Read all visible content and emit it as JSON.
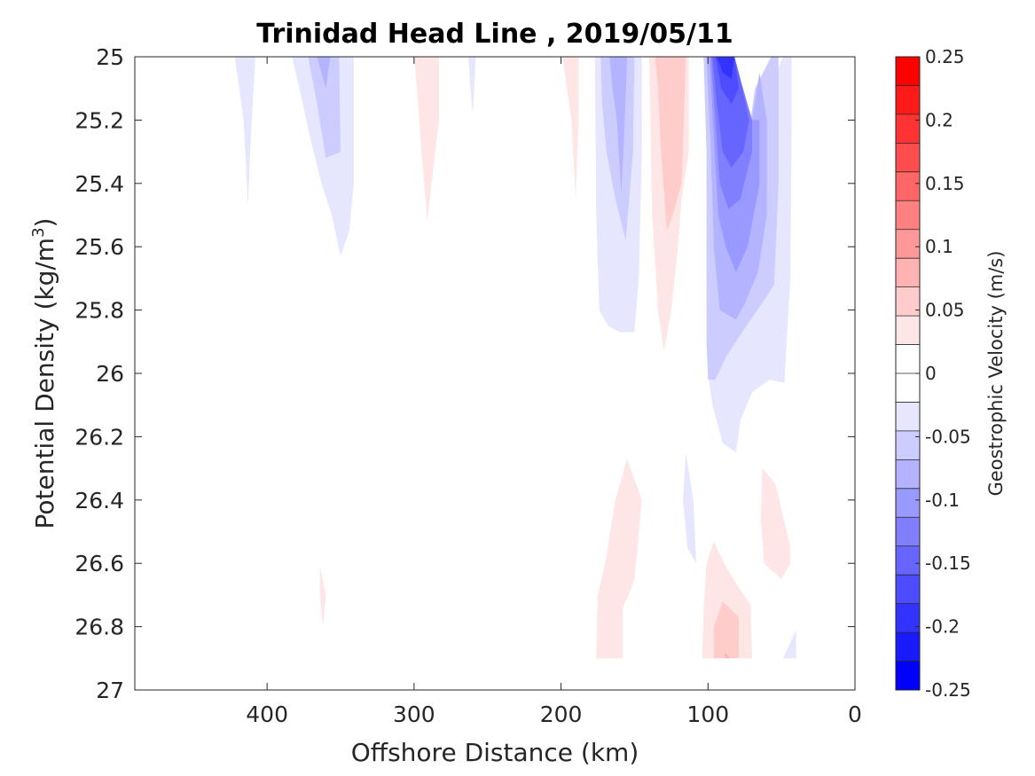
{
  "chart_data": {
    "type": "contour",
    "title": "Trinidad Head Line , 2019/05/11",
    "xlabel": "Offshore Distance (km)",
    "ylabel": "Potential Density (kg/m",
    "ylabel_superscript": "3",
    "ylabel_suffix": ")",
    "xlim": [
      490,
      0
    ],
    "x_reversed": true,
    "x_ticks": [
      400,
      300,
      200,
      100,
      0
    ],
    "x_tick_labels": [
      "400",
      "300",
      "200",
      "100",
      "0"
    ],
    "ylim": [
      25,
      27
    ],
    "y_reversed": true,
    "y_ticks": [
      25,
      25.2,
      25.4,
      25.6,
      25.8,
      26,
      26.2,
      26.4,
      26.6,
      26.8,
      27
    ],
    "y_tick_labels": [
      "25",
      "25.2",
      "25.4",
      "25.6",
      "25.8",
      "26",
      "26.2",
      "26.4",
      "26.6",
      "26.8",
      "27"
    ],
    "colorbar": {
      "label": "Geostrophic Velocity (m/s)",
      "range": [
        -0.25,
        0.25
      ],
      "levels": [
        -0.25,
        -0.225,
        -0.2,
        -0.175,
        -0.15,
        -0.125,
        -0.1,
        -0.075,
        -0.05,
        -0.025,
        0,
        0.025,
        0.05,
        0.075,
        0.1,
        0.125,
        0.15,
        0.175,
        0.2,
        0.225,
        0.25
      ],
      "ticks": [
        0.25,
        0.2,
        0.15,
        0.1,
        0.05,
        0,
        -0.05,
        -0.1,
        -0.15,
        -0.2,
        -0.25
      ],
      "tick_labels": [
        "0.25",
        "0.2",
        "0.15",
        "0.1",
        "0.05",
        "0",
        "-0.05",
        "-0.1",
        "-0.15",
        "-0.2",
        "-0.25"
      ],
      "colors_top_to_bottom": [
        "#ff0000",
        "#ff1a1a",
        "#ff3333",
        "#ff4d4d",
        "#ff6666",
        "#ff8080",
        "#ff9999",
        "#ffb3b3",
        "#ffcccc",
        "#ffe6e6",
        "#ffffff",
        "#ffffff",
        "#e6e6ff",
        "#ccccff",
        "#b3b3ff",
        "#9999ff",
        "#8080ff",
        "#6666ff",
        "#4d4dff",
        "#3333ff",
        "#1a1aff",
        "#0000ff"
      ]
    },
    "contour_regions": [
      {
        "level": -0.025,
        "color": "#e6e6ff",
        "points": [
          [
            422,
            25
          ],
          [
            408,
            25
          ],
          [
            411,
            25.25
          ],
          [
            413,
            25.47
          ],
          [
            416,
            25.2
          ]
        ]
      },
      {
        "level": -0.025,
        "color": "#e6e6ff",
        "points": [
          [
            383,
            25
          ],
          [
            341,
            25
          ],
          [
            341,
            25.4
          ],
          [
            344,
            25.55
          ],
          [
            350,
            25.63
          ],
          [
            356,
            25.5
          ],
          [
            363,
            25.4
          ],
          [
            371,
            25.25
          ],
          [
            378,
            25.1
          ]
        ]
      },
      {
        "level": -0.05,
        "color": "#ccccff",
        "points": [
          [
            372,
            25
          ],
          [
            351,
            25
          ],
          [
            350,
            25.3
          ],
          [
            360,
            25.32
          ],
          [
            366,
            25.15
          ]
        ]
      },
      {
        "level": -0.075,
        "color": "#b3b3ff",
        "points": [
          [
            366,
            25
          ],
          [
            357,
            25
          ],
          [
            360,
            25.1
          ],
          [
            363,
            25.05
          ]
        ]
      },
      {
        "level": 0.025,
        "color": "#ffe6e6",
        "points": [
          [
            300,
            25
          ],
          [
            283,
            25
          ],
          [
            283,
            25.2
          ],
          [
            288,
            25.4
          ],
          [
            291,
            25.52
          ],
          [
            295,
            25.3
          ],
          [
            298,
            25.1
          ]
        ]
      },
      {
        "level": -0.025,
        "color": "#e6e6ff",
        "points": [
          [
            263,
            25
          ],
          [
            258,
            25
          ],
          [
            260,
            25.18
          ],
          [
            262,
            25.08
          ]
        ]
      },
      {
        "level": 0.025,
        "color": "#ffe6e6",
        "points": [
          [
            199,
            25
          ],
          [
            188,
            25
          ],
          [
            188,
            25.2
          ],
          [
            190,
            25.45
          ],
          [
            193,
            25.2
          ]
        ]
      },
      {
        "level": -0.025,
        "color": "#e6e6ff",
        "points": [
          [
            177,
            25
          ],
          [
            145,
            25
          ],
          [
            145,
            25.3
          ],
          [
            147,
            25.69
          ],
          [
            150,
            25.87
          ],
          [
            160,
            25.87
          ],
          [
            168,
            25.85
          ],
          [
            174,
            25.8
          ],
          [
            176,
            25.5
          ]
        ]
      },
      {
        "level": -0.05,
        "color": "#ccccff",
        "points": [
          [
            173,
            25
          ],
          [
            150,
            25
          ],
          [
            151,
            25.3
          ],
          [
            156,
            25.58
          ],
          [
            163,
            25.45
          ],
          [
            169,
            25.3
          ],
          [
            172,
            25.15
          ]
        ]
      },
      {
        "level": -0.075,
        "color": "#b3b3ff",
        "points": [
          [
            167,
            25
          ],
          [
            155,
            25
          ],
          [
            157,
            25.25
          ],
          [
            159,
            25.43
          ],
          [
            162,
            25.2
          ],
          [
            165,
            25.1
          ]
        ]
      },
      {
        "level": 0.025,
        "color": "#ffe6e6",
        "points": [
          [
            140,
            25
          ],
          [
            113,
            25
          ],
          [
            113,
            25.3
          ],
          [
            118,
            25.45
          ],
          [
            121,
            25.63
          ],
          [
            125,
            25.8
          ],
          [
            130,
            25.93
          ],
          [
            134,
            25.8
          ],
          [
            138,
            25.5
          ]
        ]
      },
      {
        "level": 0.05,
        "color": "#ffcccc",
        "points": [
          [
            136,
            25
          ],
          [
            115,
            25
          ],
          [
            118,
            25.4
          ],
          [
            124,
            25.5
          ],
          [
            128,
            25.55
          ],
          [
            132,
            25.3
          ],
          [
            134,
            25.1
          ]
        ]
      },
      {
        "level": -0.025,
        "color": "#e6e6ff",
        "points": [
          [
            103,
            25
          ],
          [
            100,
            25.3
          ],
          [
            100,
            25.9
          ],
          [
            100,
            26.0
          ],
          [
            97,
            26.1
          ],
          [
            90,
            26.22
          ],
          [
            81,
            26.25
          ],
          [
            78,
            26.15
          ],
          [
            70,
            26.06
          ],
          [
            58,
            26.02
          ],
          [
            48,
            26.03
          ],
          [
            44,
            25.7
          ],
          [
            43,
            25.2
          ],
          [
            43,
            25
          ],
          [
            49,
            25
          ],
          [
            62,
            25.15
          ],
          [
            71,
            25.2
          ],
          [
            80,
            25.07
          ],
          [
            85,
            25
          ]
        ]
      },
      {
        "level": -0.05,
        "color": "#ccccff",
        "points": [
          [
            103,
            25
          ],
          [
            101,
            25.3
          ],
          [
            101,
            25.9
          ],
          [
            100,
            26.02
          ],
          [
            95,
            26.02
          ],
          [
            88,
            25.95
          ],
          [
            74,
            25.85
          ],
          [
            62,
            25.77
          ],
          [
            55,
            25.72
          ],
          [
            52,
            25.4
          ],
          [
            52,
            25
          ],
          [
            57,
            25
          ],
          [
            68,
            25.1
          ],
          [
            71,
            25.2
          ],
          [
            78,
            25.07
          ],
          [
            84,
            25
          ]
        ]
      },
      {
        "level": -0.075,
        "color": "#b3b3ff",
        "points": [
          [
            101,
            25
          ],
          [
            98,
            25.3
          ],
          [
            96,
            25.6
          ],
          [
            92,
            25.8
          ],
          [
            81,
            25.83
          ],
          [
            75,
            25.78
          ],
          [
            66,
            25.68
          ],
          [
            60,
            25.5
          ],
          [
            60,
            25.2
          ],
          [
            65,
            25.05
          ],
          [
            70,
            25.2
          ],
          [
            78,
            25.07
          ],
          [
            82,
            25
          ]
        ]
      },
      {
        "level": -0.1,
        "color": "#9999ff",
        "points": [
          [
            99,
            25
          ],
          [
            96,
            25.25
          ],
          [
            93,
            25.5
          ],
          [
            88,
            25.6
          ],
          [
            81,
            25.68
          ],
          [
            73,
            25.6
          ],
          [
            65,
            25.4
          ],
          [
            65,
            25.2
          ],
          [
            71,
            25.2
          ],
          [
            78,
            25.07
          ],
          [
            82,
            25
          ]
        ]
      },
      {
        "level": -0.125,
        "color": "#8080ff",
        "points": [
          [
            98,
            25
          ],
          [
            95,
            25.2
          ],
          [
            92,
            25.4
          ],
          [
            86,
            25.48
          ],
          [
            78,
            25.45
          ],
          [
            70,
            25.3
          ],
          [
            70,
            25.2
          ],
          [
            78,
            25.07
          ],
          [
            82,
            25
          ]
        ]
      },
      {
        "level": -0.15,
        "color": "#6666ff",
        "points": [
          [
            97,
            25
          ],
          [
            94,
            25.15
          ],
          [
            90,
            25.3
          ],
          [
            84,
            25.35
          ],
          [
            76,
            25.3
          ],
          [
            72,
            25.2
          ],
          [
            78,
            25.07
          ],
          [
            82,
            25
          ]
        ]
      },
      {
        "level": -0.175,
        "color": "#4d4dff",
        "points": [
          [
            95,
            25
          ],
          [
            91,
            25.1
          ],
          [
            84,
            25.15
          ],
          [
            79,
            25.1
          ],
          [
            82,
            25
          ]
        ]
      },
      {
        "level": -0.2,
        "color": "#3333ff",
        "points": [
          [
            94,
            25
          ],
          [
            90,
            25.05
          ],
          [
            84,
            25.07
          ],
          [
            82,
            25
          ]
        ]
      },
      {
        "level": -0.025,
        "color": "#e6e6ff",
        "points": [
          [
            115,
            26.25
          ],
          [
            110,
            26.4
          ],
          [
            108,
            26.6
          ],
          [
            114,
            26.55
          ],
          [
            117,
            26.4
          ]
        ]
      },
      {
        "level": 0.025,
        "color": "#ffe6e6",
        "points": [
          [
            155,
            26.27
          ],
          [
            145,
            26.4
          ],
          [
            148,
            26.55
          ],
          [
            150,
            26.65
          ],
          [
            154,
            26.7
          ],
          [
            158,
            26.74
          ],
          [
            158,
            26.9
          ],
          [
            176,
            26.9
          ],
          [
            175,
            26.7
          ],
          [
            170,
            26.6
          ],
          [
            163,
            26.4
          ]
        ]
      },
      {
        "level": 0.025,
        "color": "#ffe6e6",
        "points": [
          [
            63,
            26.3
          ],
          [
            54,
            26.35
          ],
          [
            44,
            26.55
          ],
          [
            44,
            26.6
          ],
          [
            50,
            26.65
          ],
          [
            62,
            26.6
          ],
          [
            64,
            26.45
          ]
        ]
      },
      {
        "level": 0.025,
        "color": "#ffe6e6",
        "points": [
          [
            96,
            26.53
          ],
          [
            89,
            26.6
          ],
          [
            80,
            26.67
          ],
          [
            71,
            26.73
          ],
          [
            70,
            26.9
          ],
          [
            104,
            26.9
          ],
          [
            103,
            26.75
          ],
          [
            101,
            26.6
          ]
        ]
      },
      {
        "level": 0.05,
        "color": "#ffcccc",
        "points": [
          [
            90,
            26.72
          ],
          [
            79,
            26.77
          ],
          [
            79,
            26.9
          ],
          [
            96,
            26.9
          ],
          [
            96,
            26.8
          ]
        ]
      },
      {
        "level": 0.075,
        "color": "#ffb3b3",
        "points": [
          [
            89,
            26.88
          ],
          [
            85,
            26.9
          ],
          [
            88,
            26.9
          ]
        ]
      },
      {
        "level": -0.025,
        "color": "#e6e6ff",
        "points": [
          [
            40,
            26.81
          ],
          [
            49,
            26.9
          ],
          [
            40,
            26.9
          ]
        ]
      },
      {
        "level": 0.025,
        "color": "#ffe6e6",
        "points": [
          [
            364,
            26.61
          ],
          [
            360,
            26.7
          ],
          [
            362,
            26.8
          ],
          [
            364,
            26.7
          ]
        ]
      }
    ]
  }
}
